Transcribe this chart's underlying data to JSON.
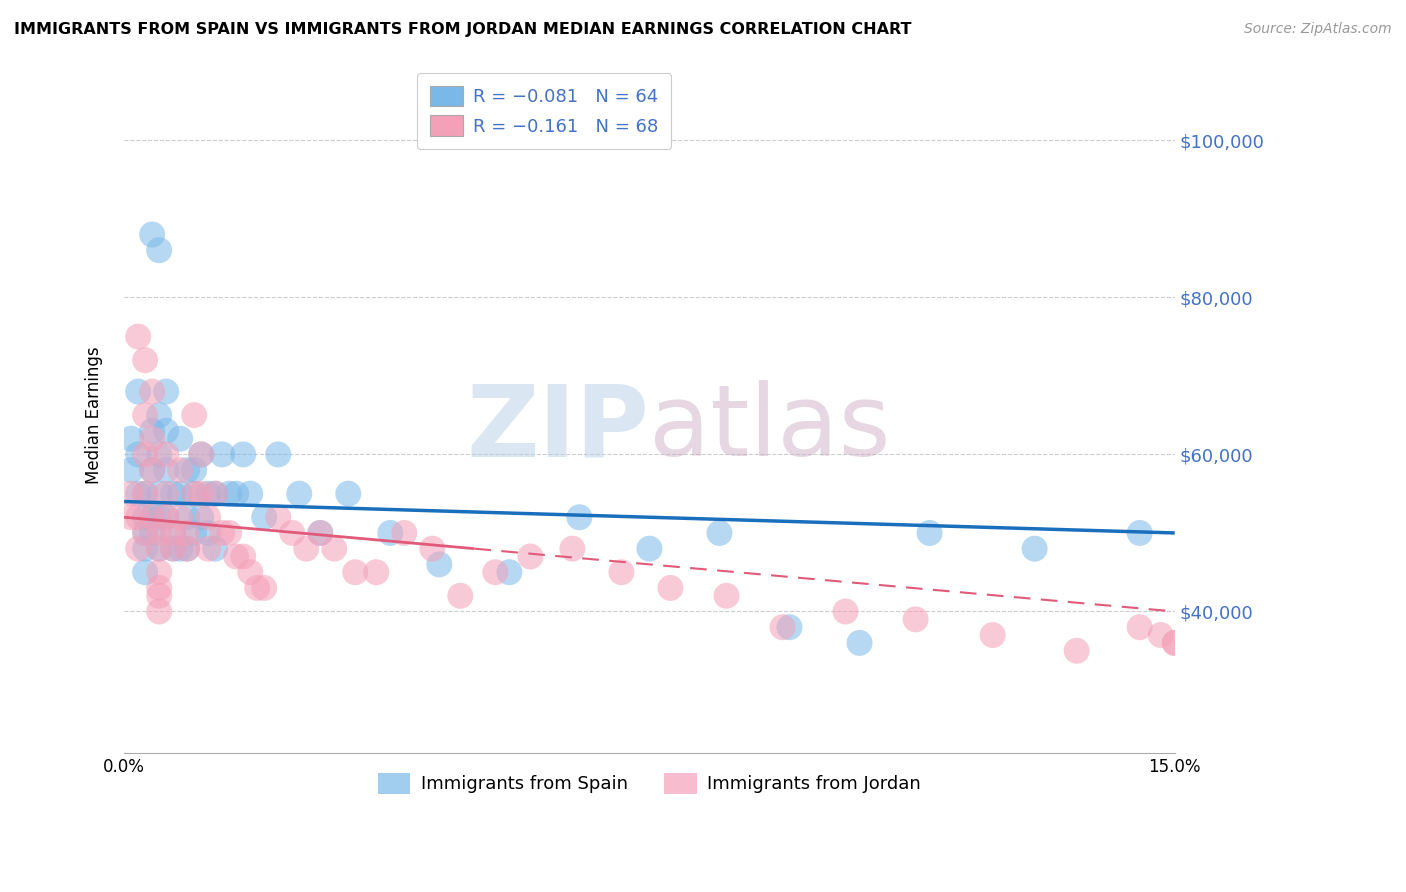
{
  "title": "IMMIGRANTS FROM SPAIN VS IMMIGRANTS FROM JORDAN MEDIAN EARNINGS CORRELATION CHART",
  "source": "Source: ZipAtlas.com",
  "ylabel": "Median Earnings",
  "y_ticks": [
    40000,
    60000,
    80000,
    100000
  ],
  "y_tick_labels": [
    "$40,000",
    "$60,000",
    "$80,000",
    "$100,000"
  ],
  "x_range": [
    0.0,
    0.15
  ],
  "y_range": [
    22000,
    108000
  ],
  "watermark": "ZIPatlas",
  "legend_spain_r": "R = −0.081",
  "legend_spain_n": "N = 64",
  "legend_jordan_r": "R = −0.161",
  "legend_jordan_n": "N = 68",
  "color_spain": "#7ab8e8",
  "color_jordan": "#f4a0b8",
  "color_trendline_spain": "#1a6fbd",
  "color_trendline_jordan": "#e05a7a",
  "spain_x": [
    0.001,
    0.001,
    0.002,
    0.002,
    0.002,
    0.003,
    0.003,
    0.003,
    0.003,
    0.003,
    0.004,
    0.004,
    0.004,
    0.004,
    0.004,
    0.005,
    0.005,
    0.005,
    0.005,
    0.005,
    0.005,
    0.006,
    0.006,
    0.006,
    0.006,
    0.007,
    0.007,
    0.007,
    0.008,
    0.008,
    0.008,
    0.009,
    0.009,
    0.009,
    0.01,
    0.01,
    0.01,
    0.011,
    0.011,
    0.012,
    0.012,
    0.013,
    0.013,
    0.014,
    0.015,
    0.016,
    0.017,
    0.018,
    0.02,
    0.022,
    0.025,
    0.028,
    0.032,
    0.038,
    0.045,
    0.055,
    0.065,
    0.075,
    0.085,
    0.095,
    0.105,
    0.115,
    0.13,
    0.145
  ],
  "spain_y": [
    58000,
    62000,
    60000,
    55000,
    68000,
    52000,
    50000,
    48000,
    55000,
    45000,
    88000,
    63000,
    58000,
    52000,
    50000,
    86000,
    65000,
    60000,
    55000,
    52000,
    48000,
    63000,
    58000,
    52000,
    68000,
    55000,
    50000,
    48000,
    62000,
    55000,
    48000,
    58000,
    52000,
    48000,
    58000,
    55000,
    50000,
    60000,
    52000,
    55000,
    50000,
    55000,
    48000,
    60000,
    55000,
    55000,
    60000,
    55000,
    52000,
    60000,
    55000,
    50000,
    55000,
    50000,
    46000,
    45000,
    52000,
    48000,
    50000,
    38000,
    36000,
    50000,
    48000,
    50000
  ],
  "jordan_x": [
    0.001,
    0.001,
    0.002,
    0.002,
    0.002,
    0.003,
    0.003,
    0.003,
    0.003,
    0.003,
    0.004,
    0.004,
    0.004,
    0.004,
    0.005,
    0.005,
    0.005,
    0.005,
    0.005,
    0.005,
    0.006,
    0.006,
    0.006,
    0.007,
    0.007,
    0.008,
    0.008,
    0.009,
    0.009,
    0.01,
    0.01,
    0.011,
    0.011,
    0.012,
    0.012,
    0.013,
    0.014,
    0.015,
    0.016,
    0.017,
    0.018,
    0.019,
    0.02,
    0.022,
    0.024,
    0.026,
    0.028,
    0.03,
    0.033,
    0.036,
    0.04,
    0.044,
    0.048,
    0.053,
    0.058,
    0.064,
    0.071,
    0.078,
    0.086,
    0.094,
    0.103,
    0.113,
    0.124,
    0.136,
    0.145,
    0.148,
    0.15,
    0.15
  ],
  "jordan_y": [
    55000,
    52000,
    75000,
    52000,
    48000,
    72000,
    65000,
    60000,
    55000,
    50000,
    68000,
    62000,
    58000,
    52000,
    50000,
    48000,
    45000,
    43000,
    42000,
    40000,
    60000,
    55000,
    52000,
    50000,
    48000,
    58000,
    52000,
    50000,
    48000,
    65000,
    55000,
    60000,
    55000,
    52000,
    48000,
    55000,
    50000,
    50000,
    47000,
    47000,
    45000,
    43000,
    43000,
    52000,
    50000,
    48000,
    50000,
    48000,
    45000,
    45000,
    50000,
    48000,
    42000,
    45000,
    47000,
    48000,
    45000,
    43000,
    42000,
    38000,
    40000,
    39000,
    37000,
    35000,
    38000,
    37000,
    36000,
    36000
  ]
}
